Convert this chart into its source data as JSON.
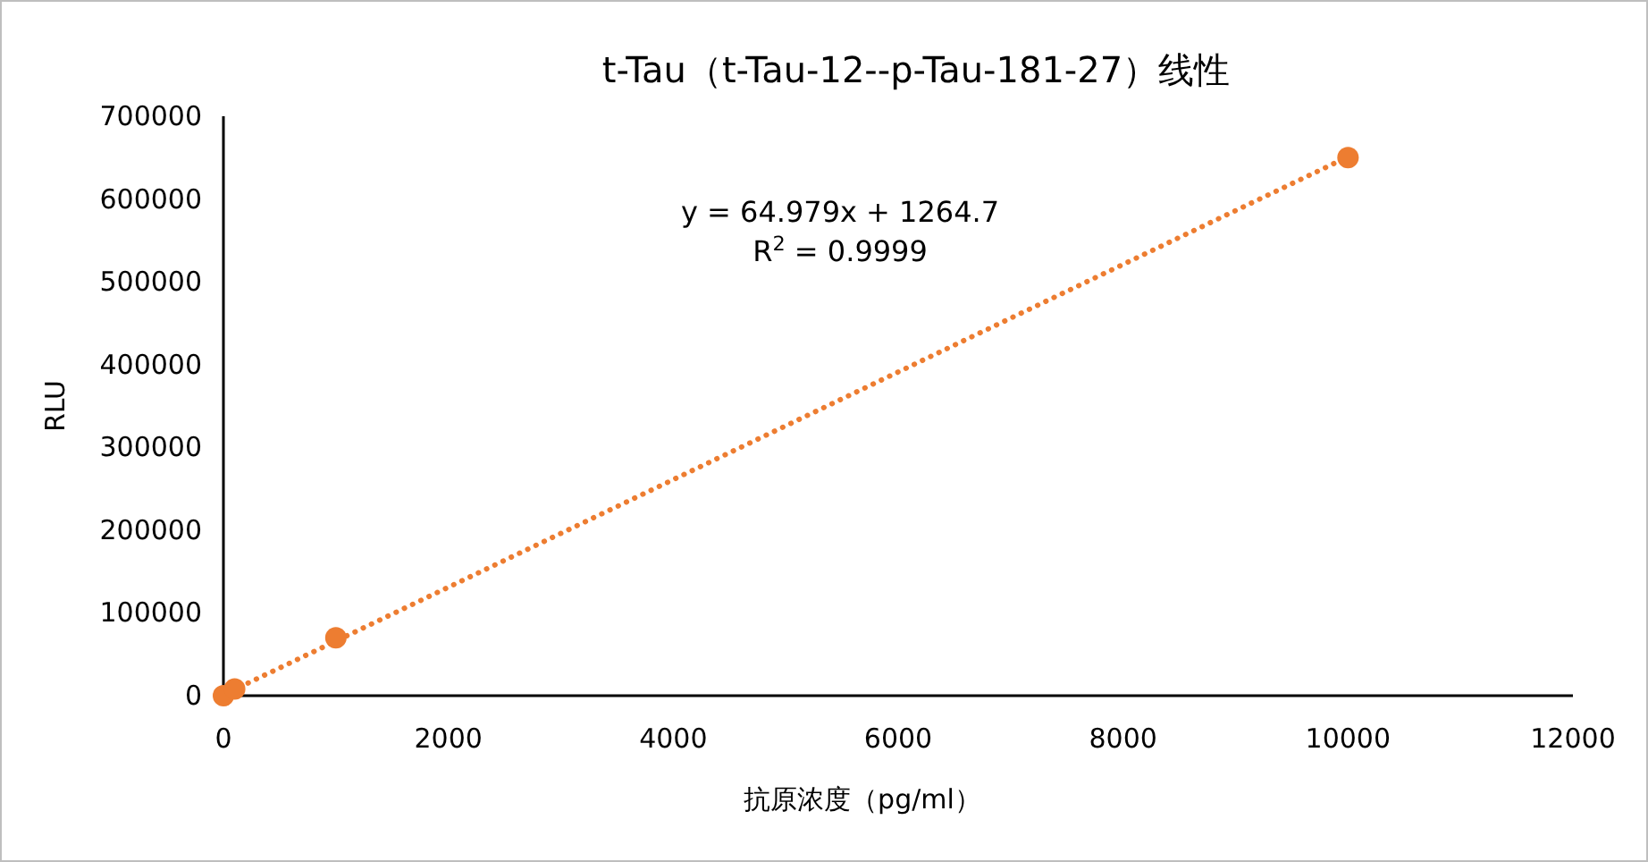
{
  "chart_data": {
    "type": "scatter",
    "title": "t-Tau（t-Tau-12--p-Tau-181-27）线性",
    "xlabel": "抗原浓度（pg/ml）",
    "ylabel": "RLU",
    "xlim": [
      0,
      12000
    ],
    "xticks": [
      0,
      2000,
      4000,
      6000,
      8000,
      10000,
      12000
    ],
    "ylim": [
      0,
      700000
    ],
    "yticks": [
      0,
      100000,
      200000,
      300000,
      400000,
      500000,
      600000,
      700000
    ],
    "grid": false,
    "series": [
      {
        "color": "#ed7d31",
        "marker": "circle",
        "x": [
          0,
          100,
          1000,
          10000
        ],
        "values": [
          0,
          8000,
          70000,
          650000
        ]
      },
      {
        "type": "line",
        "color": "#ed7d31",
        "marker": "none",
        "line_style": "dotted",
        "x": [
          0,
          10000
        ],
        "values": [
          1000,
          651000
        ]
      }
    ],
    "annotations": [
      "y = 64.979x + 1264.7",
      "R$^{2}$ = 0.9999"
    ]
  }
}
